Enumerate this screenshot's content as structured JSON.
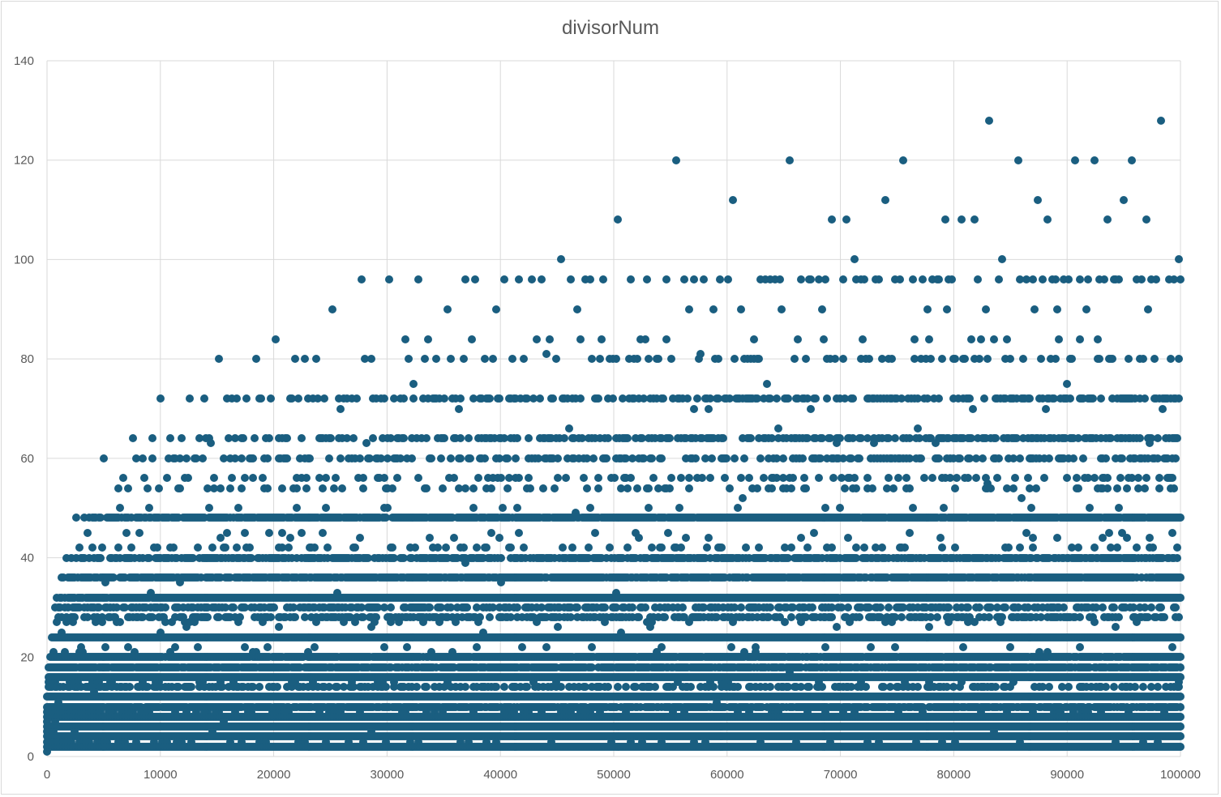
{
  "chart_data": {
    "type": "scatter",
    "title": "divisorNum",
    "xlabel": "",
    "ylabel": "",
    "xlim": [
      0,
      100000
    ],
    "ylim": [
      0,
      140
    ],
    "xticks": [
      0,
      10000,
      20000,
      30000,
      40000,
      50000,
      60000,
      70000,
      80000,
      90000,
      100000
    ],
    "yticks": [
      0,
      20,
      40,
      60,
      80,
      100,
      120,
      140
    ],
    "grid": true,
    "legend": "none",
    "series": [
      {
        "name": "divisorNum",
        "color": "#1a5e80",
        "x_range": [
          1,
          100000
        ],
        "description_of_points": "number of divisors d(n) for every integer n from 1 to 100000",
        "notable_points": [
          {
            "x": 83160,
            "y": 128
          },
          {
            "x": 98280,
            "y": 128
          },
          {
            "x": 55440,
            "y": 120
          },
          {
            "x": 65520,
            "y": 120
          },
          {
            "x": 75600,
            "y": 120
          },
          {
            "x": 85680,
            "y": 120
          },
          {
            "x": 90720,
            "y": 120
          },
          {
            "x": 92400,
            "y": 120
          },
          {
            "x": 95760,
            "y": 120
          },
          {
            "x": 60480,
            "y": 112
          },
          {
            "x": 73920,
            "y": 112
          },
          {
            "x": 87360,
            "y": 112
          },
          {
            "x": 95040,
            "y": 112
          },
          {
            "x": 50400,
            "y": 108
          },
          {
            "x": 45360,
            "y": 100
          },
          {
            "x": 99792,
            "y": 100
          },
          {
            "x": 25200,
            "y": 90
          },
          {
            "x": 20160,
            "y": 84
          },
          {
            "x": 27720,
            "y": 96
          },
          {
            "x": 15120,
            "y": 80
          },
          {
            "x": 10080,
            "y": 72
          },
          {
            "x": 5040,
            "y": 60
          }
        ]
      }
    ]
  }
}
